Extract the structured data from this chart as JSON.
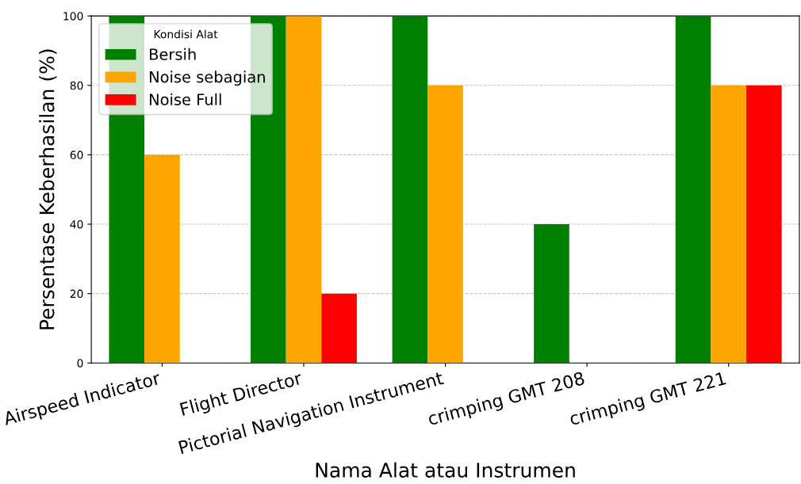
{
  "chart_data": {
    "type": "bar",
    "xlabel": "Nama Alat atau Instrumen",
    "ylabel": "Persentase Keberhasilan (%)",
    "legend_title": "Kondisi Alat",
    "categories": [
      "Airspeed Indicator",
      "Flight Director",
      "Pictorial Navigation Instrument",
      "crimping GMT 208",
      "crimping GMT 221"
    ],
    "series": [
      {
        "name": "Bersih",
        "color": "#008000",
        "values": [
          100,
          100,
          100,
          40,
          100
        ]
      },
      {
        "name": "Noise sebagian",
        "color": "#ffa500",
        "values": [
          60,
          100,
          80,
          0,
          80
        ]
      },
      {
        "name": "Noise Full",
        "color": "#ff0000",
        "values": [
          0,
          20,
          0,
          0,
          80
        ]
      }
    ],
    "ylim": [
      0,
      100
    ],
    "yticks": [
      0,
      20,
      40,
      60,
      80,
      100
    ],
    "grid": "y",
    "legend": "top left"
  }
}
